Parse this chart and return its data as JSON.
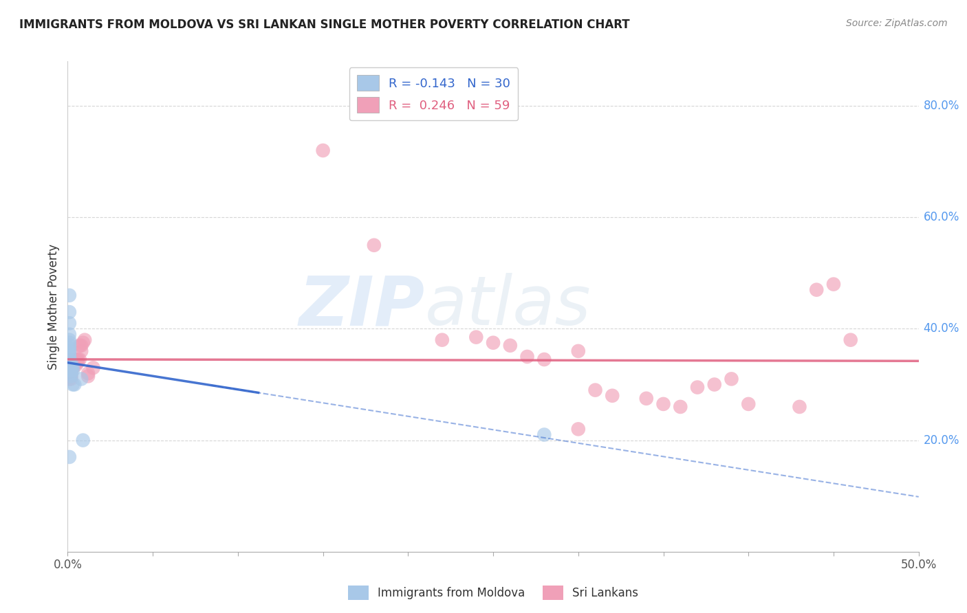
{
  "title": "IMMIGRANTS FROM MOLDOVA VS SRI LANKAN SINGLE MOTHER POVERTY CORRELATION CHART",
  "source": "Source: ZipAtlas.com",
  "ylabel": "Single Mother Poverty",
  "legend_bottom_moldova": "Immigrants from Moldova",
  "legend_bottom_srilanka": "Sri Lankans",
  "moldova_color": "#a8c8e8",
  "srilanka_color": "#f0a0b8",
  "moldova_line_color": "#3366cc",
  "srilanka_line_color": "#e06080",
  "watermark_zip": "ZIP",
  "watermark_atlas": "atlas",
  "moldova_points": [
    [
      0.001,
      0.46
    ],
    [
      0.001,
      0.43
    ],
    [
      0.001,
      0.41
    ],
    [
      0.001,
      0.39
    ],
    [
      0.001,
      0.38
    ],
    [
      0.001,
      0.375
    ],
    [
      0.001,
      0.37
    ],
    [
      0.001,
      0.365
    ],
    [
      0.001,
      0.36
    ],
    [
      0.001,
      0.355
    ],
    [
      0.001,
      0.35
    ],
    [
      0.001,
      0.345
    ],
    [
      0.001,
      0.34
    ],
    [
      0.001,
      0.335
    ],
    [
      0.001,
      0.33
    ],
    [
      0.001,
      0.325
    ],
    [
      0.001,
      0.32
    ],
    [
      0.002,
      0.34
    ],
    [
      0.002,
      0.33
    ],
    [
      0.002,
      0.325
    ],
    [
      0.002,
      0.32
    ],
    [
      0.002,
      0.315
    ],
    [
      0.003,
      0.33
    ],
    [
      0.003,
      0.325
    ],
    [
      0.003,
      0.3
    ],
    [
      0.004,
      0.3
    ],
    [
      0.008,
      0.31
    ],
    [
      0.009,
      0.2
    ],
    [
      0.001,
      0.17
    ],
    [
      0.28,
      0.21
    ]
  ],
  "srilanka_points": [
    [
      0.001,
      0.345
    ],
    [
      0.001,
      0.34
    ],
    [
      0.001,
      0.335
    ],
    [
      0.001,
      0.33
    ],
    [
      0.001,
      0.325
    ],
    [
      0.001,
      0.32
    ],
    [
      0.001,
      0.315
    ],
    [
      0.001,
      0.31
    ],
    [
      0.002,
      0.34
    ],
    [
      0.002,
      0.335
    ],
    [
      0.002,
      0.33
    ],
    [
      0.002,
      0.325
    ],
    [
      0.002,
      0.32
    ],
    [
      0.002,
      0.315
    ],
    [
      0.002,
      0.31
    ],
    [
      0.003,
      0.345
    ],
    [
      0.003,
      0.34
    ],
    [
      0.003,
      0.335
    ],
    [
      0.003,
      0.33
    ],
    [
      0.004,
      0.345
    ],
    [
      0.004,
      0.34
    ],
    [
      0.004,
      0.335
    ],
    [
      0.005,
      0.345
    ],
    [
      0.005,
      0.34
    ],
    [
      0.005,
      0.335
    ],
    [
      0.006,
      0.345
    ],
    [
      0.006,
      0.34
    ],
    [
      0.007,
      0.345
    ],
    [
      0.007,
      0.37
    ],
    [
      0.008,
      0.36
    ],
    [
      0.008,
      0.37
    ],
    [
      0.009,
      0.375
    ],
    [
      0.01,
      0.38
    ],
    [
      0.012,
      0.32
    ],
    [
      0.012,
      0.315
    ],
    [
      0.015,
      0.33
    ],
    [
      0.15,
      0.72
    ],
    [
      0.18,
      0.55
    ],
    [
      0.22,
      0.38
    ],
    [
      0.24,
      0.385
    ],
    [
      0.25,
      0.375
    ],
    [
      0.26,
      0.37
    ],
    [
      0.27,
      0.35
    ],
    [
      0.28,
      0.345
    ],
    [
      0.3,
      0.36
    ],
    [
      0.3,
      0.22
    ],
    [
      0.31,
      0.29
    ],
    [
      0.32,
      0.28
    ],
    [
      0.34,
      0.275
    ],
    [
      0.35,
      0.265
    ],
    [
      0.36,
      0.26
    ],
    [
      0.37,
      0.295
    ],
    [
      0.38,
      0.3
    ],
    [
      0.39,
      0.31
    ],
    [
      0.4,
      0.265
    ],
    [
      0.43,
      0.26
    ],
    [
      0.44,
      0.47
    ],
    [
      0.45,
      0.48
    ],
    [
      0.46,
      0.38
    ]
  ],
  "xlim": [
    0.0,
    0.5
  ],
  "ylim": [
    0.0,
    0.88
  ],
  "background_color": "#ffffff",
  "grid_color": "#cccccc",
  "right_yticks": [
    0.8,
    0.6,
    0.4,
    0.2
  ],
  "right_yticklabels": [
    "80.0%",
    "60.0%",
    "40.0%",
    "20.0%"
  ]
}
